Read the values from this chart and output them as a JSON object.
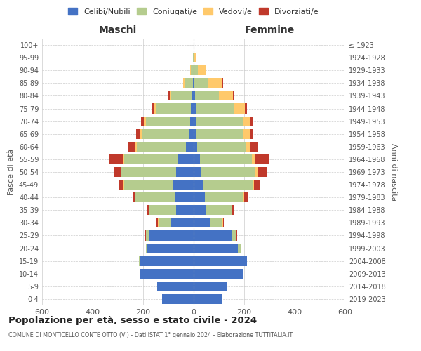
{
  "age_groups": [
    "0-4",
    "5-9",
    "10-14",
    "15-19",
    "20-24",
    "25-29",
    "30-34",
    "35-39",
    "40-44",
    "45-49",
    "50-54",
    "55-59",
    "60-64",
    "65-69",
    "70-74",
    "75-79",
    "80-84",
    "85-89",
    "90-94",
    "95-99",
    "100+"
  ],
  "birth_years": [
    "2019-2023",
    "2014-2018",
    "2009-2013",
    "2004-2008",
    "1999-2003",
    "1994-1998",
    "1989-1993",
    "1984-1988",
    "1979-1983",
    "1974-1978",
    "1969-1973",
    "1964-1968",
    "1959-1963",
    "1954-1958",
    "1949-1953",
    "1944-1948",
    "1939-1943",
    "1934-1938",
    "1929-1933",
    "1924-1928",
    "≤ 1923"
  ],
  "males": {
    "celibi": [
      125,
      145,
      210,
      215,
      185,
      175,
      90,
      70,
      75,
      80,
      70,
      60,
      30,
      20,
      15,
      10,
      5,
      2,
      0,
      0,
      0
    ],
    "coniugati": [
      0,
      0,
      0,
      2,
      5,
      15,
      50,
      105,
      155,
      195,
      215,
      215,
      195,
      185,
      175,
      140,
      85,
      35,
      10,
      2,
      0
    ],
    "vedovi": [
      0,
      0,
      0,
      0,
      0,
      0,
      1,
      1,
      2,
      2,
      3,
      5,
      5,
      8,
      8,
      8,
      5,
      5,
      3,
      0,
      0
    ],
    "divorziati": [
      0,
      0,
      0,
      0,
      0,
      2,
      5,
      8,
      10,
      20,
      25,
      55,
      30,
      15,
      10,
      8,
      5,
      0,
      0,
      0,
      0
    ]
  },
  "females": {
    "nubili": [
      110,
      130,
      195,
      210,
      175,
      150,
      65,
      50,
      45,
      40,
      30,
      25,
      15,
      12,
      10,
      8,
      5,
      4,
      2,
      0,
      0
    ],
    "coniugate": [
      0,
      0,
      0,
      2,
      10,
      20,
      50,
      100,
      150,
      195,
      215,
      205,
      190,
      185,
      185,
      150,
      95,
      55,
      15,
      3,
      0
    ],
    "vedove": [
      0,
      0,
      0,
      0,
      0,
      0,
      2,
      3,
      5,
      5,
      10,
      15,
      20,
      25,
      30,
      45,
      55,
      55,
      30,
      5,
      0
    ],
    "divorziate": [
      0,
      0,
      0,
      0,
      0,
      2,
      3,
      8,
      15,
      25,
      35,
      55,
      30,
      12,
      10,
      8,
      5,
      2,
      0,
      0,
      0
    ]
  },
  "colors": {
    "celibi": "#4472c4",
    "coniugati": "#b5cc8e",
    "vedovi": "#ffc96b",
    "divorziati": "#c0392b"
  },
  "title": "Popolazione per età, sesso e stato civile - 2024",
  "subtitle": "COMUNE DI MONTICELLO CONTE OTTO (VI) - Dati ISTAT 1° gennaio 2024 - Elaborazione TUTTITALIA.IT",
  "xlabel_left": "Maschi",
  "xlabel_right": "Femmine",
  "ylabel_left": "Fasce di età",
  "ylabel_right": "Anni di nascita",
  "legend_labels": [
    "Celibi/Nubili",
    "Coniugati/e",
    "Vedovi/e",
    "Divorziati/e"
  ],
  "xlim": 600,
  "background_color": "#ffffff"
}
